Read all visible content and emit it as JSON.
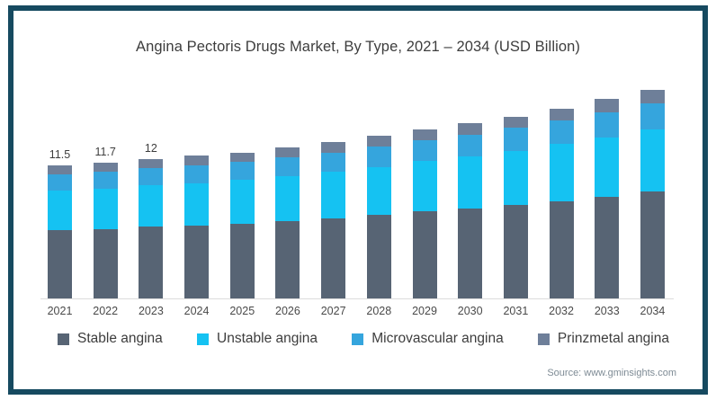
{
  "colors": {
    "frame_border": "#164a60",
    "axis_line": "#dcdcdc",
    "title_text": "#3d3d3d",
    "axis_text": "#4a4a4a",
    "source_text": "#7e8b95"
  },
  "source_note": "Source: www.gminsights.com",
  "chart_data": {
    "type": "bar",
    "stacked": true,
    "title": "Angina Pectoris Drugs Market, By Type, 2021 – 2034 (USD Billion)",
    "xlabel": "",
    "ylabel": "",
    "y_axis_visible": false,
    "grid": false,
    "legend_position": "bottom",
    "categories": [
      "2021",
      "2022",
      "2023",
      "2024",
      "2025",
      "2026",
      "2027",
      "2028",
      "2029",
      "2030",
      "2031",
      "2032",
      "2033",
      "2034"
    ],
    "series": [
      {
        "name": "Stable angina",
        "color": "#576474",
        "values": [
          5.9,
          6.0,
          6.2,
          6.3,
          6.45,
          6.65,
          6.9,
          7.2,
          7.5,
          7.75,
          8.05,
          8.4,
          8.8,
          9.25
        ]
      },
      {
        "name": "Unstable angina",
        "color": "#15c2f2",
        "values": [
          3.4,
          3.5,
          3.55,
          3.65,
          3.75,
          3.9,
          4.0,
          4.15,
          4.35,
          4.5,
          4.7,
          4.9,
          5.1,
          5.35
        ]
      },
      {
        "name": "Microvascular angina",
        "color": "#35a5dd",
        "values": [
          1.4,
          1.45,
          1.5,
          1.55,
          1.6,
          1.6,
          1.7,
          1.75,
          1.8,
          1.85,
          1.95,
          2.05,
          2.15,
          2.2
        ]
      },
      {
        "name": "Prinzmetal angina",
        "color": "#6e7f99",
        "values": [
          0.8,
          0.75,
          0.75,
          0.8,
          0.8,
          0.85,
          0.9,
          0.9,
          0.95,
          1.0,
          1.0,
          1.05,
          1.15,
          1.2
        ]
      }
    ],
    "totals": [
      11.5,
      11.7,
      12.0,
      12.3,
      12.6,
      13.0,
      13.5,
      14.0,
      14.6,
      15.1,
      15.7,
      16.4,
      17.2,
      18.0
    ],
    "bar_labels": [
      "11.5",
      "11.7",
      "12",
      null,
      null,
      null,
      null,
      null,
      null,
      null,
      null,
      null,
      null,
      null
    ],
    "ylim": [
      0,
      18.0
    ]
  }
}
